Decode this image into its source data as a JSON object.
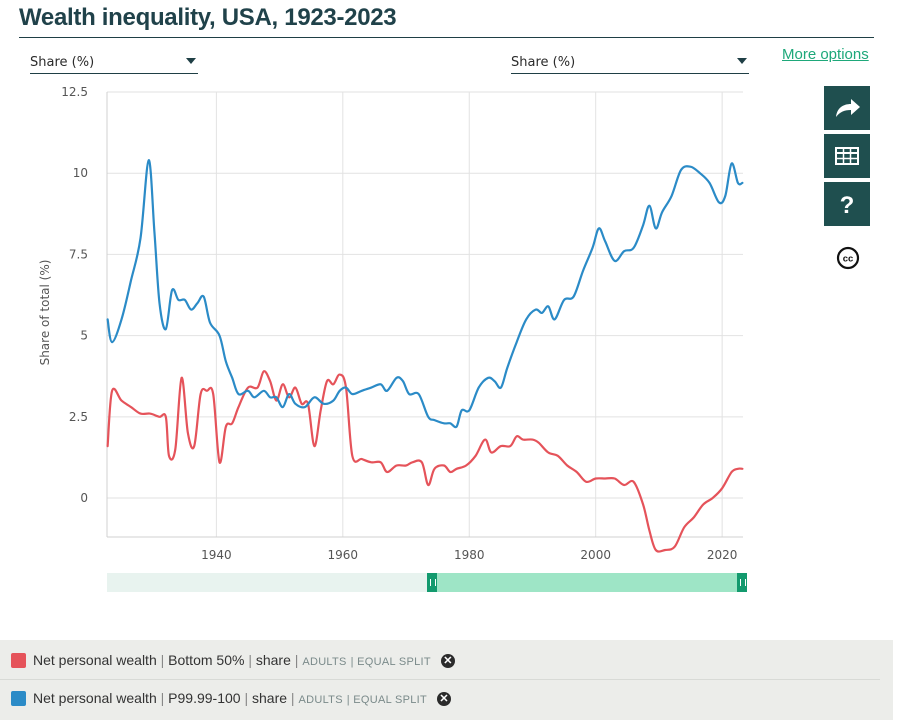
{
  "title": "Wealth inequality, USA, 1923-2023",
  "selectors": {
    "left": "Share (%)",
    "right": "Share (%)"
  },
  "more_options": "More options",
  "tools": [
    "share-icon",
    "table-icon",
    "help-icon",
    "cc-icon"
  ],
  "colors": {
    "bottom50": "#e5535a",
    "top": "#2b8bc7",
    "accent": "#1ea87a",
    "dark": "#1f4f4f"
  },
  "chart_data": {
    "type": "line",
    "title": "Wealth inequality, USA, 1923-2023",
    "ylabel": "Share of total (%)",
    "xlabel": "",
    "xlim": [
      1922.7,
      2023.3
    ],
    "ylim": [
      -1.2,
      12.5
    ],
    "x_ticks": [
      "1940",
      "1960",
      "1980",
      "2000",
      "2020"
    ],
    "y_ticks": [
      "0",
      "2.5",
      "5",
      "7.5",
      "10",
      "12.5"
    ],
    "series": [
      {
        "name": "Net personal wealth | Bottom 50% | share",
        "color": "#e5535a",
        "points": [
          [
            1922.8,
            1.6
          ],
          [
            1923.5,
            3.3
          ],
          [
            1925,
            3.0
          ],
          [
            1926.5,
            2.8
          ],
          [
            1928,
            2.6
          ],
          [
            1929.5,
            2.6
          ],
          [
            1931,
            2.5
          ],
          [
            1932,
            2.5
          ],
          [
            1932.5,
            1.3
          ],
          [
            1933.5,
            1.5
          ],
          [
            1934.5,
            3.7
          ],
          [
            1935.5,
            2.0
          ],
          [
            1936.5,
            1.6
          ],
          [
            1937.5,
            3.2
          ],
          [
            1938.5,
            3.3
          ],
          [
            1939.5,
            3.2
          ],
          [
            1940.5,
            1.1
          ],
          [
            1941.5,
            2.2
          ],
          [
            1942.5,
            2.3
          ],
          [
            1943.5,
            2.8
          ],
          [
            1945,
            3.4
          ],
          [
            1946.5,
            3.4
          ],
          [
            1947.5,
            3.9
          ],
          [
            1948.5,
            3.6
          ],
          [
            1949.5,
            3.0
          ],
          [
            1950.5,
            3.5
          ],
          [
            1951.5,
            3.1
          ],
          [
            1952.5,
            3.4
          ],
          [
            1953.5,
            2.9
          ],
          [
            1954.5,
            2.9
          ],
          [
            1955.5,
            1.6
          ],
          [
            1956.5,
            2.7
          ],
          [
            1957.5,
            3.6
          ],
          [
            1958.5,
            3.5
          ],
          [
            1959.5,
            3.8
          ],
          [
            1960.5,
            3.4
          ],
          [
            1961.5,
            1.3
          ],
          [
            1963,
            1.2
          ],
          [
            1964.5,
            1.1
          ],
          [
            1966,
            1.1
          ],
          [
            1967,
            0.8
          ],
          [
            1968.5,
            1.0
          ],
          [
            1970,
            1.0
          ],
          [
            1971,
            1.1
          ],
          [
            1972.5,
            1.1
          ],
          [
            1973.5,
            0.4
          ],
          [
            1974.5,
            0.9
          ],
          [
            1976,
            1.0
          ],
          [
            1977,
            0.8
          ],
          [
            1978,
            0.9
          ],
          [
            1979.5,
            1.0
          ],
          [
            1981,
            1.3
          ],
          [
            1982.5,
            1.8
          ],
          [
            1983.5,
            1.4
          ],
          [
            1985,
            1.6
          ],
          [
            1986.5,
            1.6
          ],
          [
            1987.5,
            1.9
          ],
          [
            1988.5,
            1.8
          ],
          [
            1990,
            1.8
          ],
          [
            1991,
            1.7
          ],
          [
            1992.5,
            1.4
          ],
          [
            1994,
            1.3
          ],
          [
            1995.5,
            1.0
          ],
          [
            1997,
            0.8
          ],
          [
            1998.5,
            0.5
          ],
          [
            2000,
            0.6
          ],
          [
            2001.5,
            0.6
          ],
          [
            2003,
            0.6
          ],
          [
            2004.5,
            0.4
          ],
          [
            2006,
            0.5
          ],
          [
            2007.5,
            -0.2
          ],
          [
            2008.5,
            -1.0
          ],
          [
            2009.5,
            -1.6
          ],
          [
            2011,
            -1.6
          ],
          [
            2012.5,
            -1.5
          ],
          [
            2014,
            -0.9
          ],
          [
            2015.5,
            -0.6
          ],
          [
            2017,
            -0.2
          ],
          [
            2018.5,
            0.0
          ],
          [
            2020,
            0.3
          ],
          [
            2021.5,
            0.8
          ],
          [
            2022.5,
            0.9
          ],
          [
            2023.2,
            0.9
          ]
        ]
      },
      {
        "name": "Net personal wealth | P99.99-100 | share",
        "color": "#2b8bc7",
        "points": [
          [
            1922.8,
            5.5
          ],
          [
            1923.5,
            4.8
          ],
          [
            1925,
            5.5
          ],
          [
            1926.5,
            6.7
          ],
          [
            1928,
            8.0
          ],
          [
            1929.3,
            10.4
          ],
          [
            1930.2,
            8.2
          ],
          [
            1931,
            6.0
          ],
          [
            1932,
            5.2
          ],
          [
            1933,
            6.4
          ],
          [
            1934,
            6.1
          ],
          [
            1935,
            6.1
          ],
          [
            1936,
            5.8
          ],
          [
            1937,
            6.0
          ],
          [
            1938,
            6.2
          ],
          [
            1939,
            5.4
          ],
          [
            1940.5,
            5.0
          ],
          [
            1941.5,
            4.2
          ],
          [
            1942.5,
            3.7
          ],
          [
            1943.5,
            3.2
          ],
          [
            1945,
            3.3
          ],
          [
            1946,
            3.1
          ],
          [
            1947.5,
            3.3
          ],
          [
            1948.5,
            3.1
          ],
          [
            1949.5,
            3.1
          ],
          [
            1950.5,
            2.8
          ],
          [
            1951.5,
            3.2
          ],
          [
            1952.5,
            2.9
          ],
          [
            1954,
            2.8
          ],
          [
            1955.5,
            3.1
          ],
          [
            1957,
            2.9
          ],
          [
            1958.5,
            3.0
          ],
          [
            1959.5,
            3.3
          ],
          [
            1960.5,
            3.4
          ],
          [
            1961.5,
            3.2
          ],
          [
            1963,
            3.3
          ],
          [
            1964.5,
            3.4
          ],
          [
            1966,
            3.5
          ],
          [
            1967,
            3.3
          ],
          [
            1968.5,
            3.7
          ],
          [
            1969.5,
            3.6
          ],
          [
            1970.5,
            3.2
          ],
          [
            1972,
            3.2
          ],
          [
            1973.5,
            2.5
          ],
          [
            1974.5,
            2.4
          ],
          [
            1976,
            2.3
          ],
          [
            1977,
            2.3
          ],
          [
            1978,
            2.2
          ],
          [
            1978.8,
            2.7
          ],
          [
            1980,
            2.7
          ],
          [
            1981.5,
            3.4
          ],
          [
            1983,
            3.7
          ],
          [
            1984,
            3.6
          ],
          [
            1985,
            3.4
          ],
          [
            1986,
            4.0
          ],
          [
            1987.5,
            4.8
          ],
          [
            1989,
            5.5
          ],
          [
            1990.5,
            5.8
          ],
          [
            1991.5,
            5.7
          ],
          [
            1992.5,
            5.9
          ],
          [
            1993.5,
            5.5
          ],
          [
            1995,
            6.1
          ],
          [
            1996.5,
            6.2
          ],
          [
            1998,
            7.0
          ],
          [
            1999.5,
            7.7
          ],
          [
            2000.5,
            8.3
          ],
          [
            2001.5,
            7.9
          ],
          [
            2003,
            7.3
          ],
          [
            2004.5,
            7.6
          ],
          [
            2006,
            7.7
          ],
          [
            2007.5,
            8.4
          ],
          [
            2008.5,
            9.0
          ],
          [
            2009.5,
            8.3
          ],
          [
            2010.5,
            8.8
          ],
          [
            2012,
            9.3
          ],
          [
            2013.5,
            10.1
          ],
          [
            2015,
            10.2
          ],
          [
            2016.5,
            10.0
          ],
          [
            2018,
            9.7
          ],
          [
            2019.5,
            9.1
          ],
          [
            2020.5,
            9.3
          ],
          [
            2021.5,
            10.3
          ],
          [
            2022.5,
            9.7
          ],
          [
            2023.2,
            9.7
          ]
        ]
      }
    ]
  },
  "slider": {
    "range_start": 1923,
    "range_end": 2023,
    "selected_start": 1973,
    "selected_end": 2023
  },
  "legend": [
    {
      "entity": "Net personal wealth",
      "group": "Bottom 50%",
      "stat": "share",
      "qualifiers": [
        "ADULTS",
        "EQUAL SPLIT"
      ],
      "color": "#e5535a"
    },
    {
      "entity": "Net personal wealth",
      "group": "P99.99-100",
      "stat": "share",
      "qualifiers": [
        "ADULTS",
        "EQUAL SPLIT"
      ],
      "color": "#2b8bc7"
    }
  ]
}
